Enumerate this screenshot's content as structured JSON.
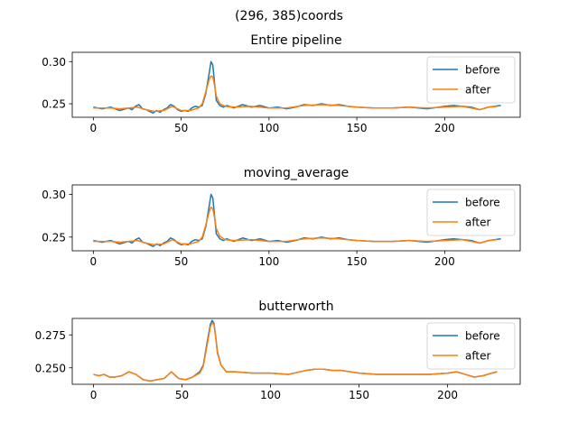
{
  "figure": {
    "suptitle": "(296, 385)coords"
  },
  "colors": {
    "before": "#1f77b4",
    "after": "#ff7f0e"
  },
  "chart_data": [
    {
      "type": "line",
      "title": "Entire pipeline",
      "xlim": [
        -12,
        243
      ],
      "ylim": [
        0.234,
        0.311
      ],
      "xticks": [
        0,
        50,
        100,
        150,
        200
      ],
      "yticks": [
        0.25,
        0.3
      ],
      "ytick_labels": [
        "0.25",
        "0.30"
      ],
      "legend": "upper right",
      "series": [
        {
          "name": "before",
          "color": "#1f77b4",
          "x": [
            0,
            5,
            10,
            15,
            20,
            22,
            24,
            26,
            28,
            30,
            32,
            34,
            36,
            38,
            40,
            42,
            44,
            46,
            48,
            50,
            52,
            54,
            56,
            58,
            60,
            62,
            64,
            66,
            67,
            68,
            69,
            70,
            72,
            74,
            76,
            80,
            85,
            90,
            95,
            100,
            105,
            110,
            115,
            120,
            125,
            130,
            135,
            140,
            145,
            150,
            160,
            170,
            180,
            190,
            200,
            205,
            210,
            215,
            220,
            225,
            232
          ],
          "y": [
            0.246,
            0.244,
            0.246,
            0.242,
            0.245,
            0.243,
            0.247,
            0.249,
            0.244,
            0.243,
            0.241,
            0.239,
            0.242,
            0.24,
            0.243,
            0.245,
            0.249,
            0.247,
            0.243,
            0.241,
            0.242,
            0.241,
            0.245,
            0.247,
            0.246,
            0.248,
            0.262,
            0.287,
            0.3,
            0.296,
            0.275,
            0.254,
            0.248,
            0.246,
            0.248,
            0.245,
            0.249,
            0.246,
            0.248,
            0.245,
            0.246,
            0.244,
            0.246,
            0.249,
            0.248,
            0.25,
            0.248,
            0.249,
            0.247,
            0.246,
            0.245,
            0.245,
            0.246,
            0.244,
            0.247,
            0.248,
            0.247,
            0.246,
            0.243,
            0.246,
            0.248
          ]
        },
        {
          "name": "after",
          "color": "#ff7f0e",
          "x": [
            0,
            5,
            10,
            15,
            20,
            25,
            30,
            35,
            40,
            45,
            50,
            55,
            60,
            62,
            64,
            66,
            67,
            68,
            69,
            70,
            72,
            75,
            80,
            90,
            100,
            110,
            120,
            130,
            140,
            150,
            160,
            170,
            180,
            190,
            200,
            210,
            215,
            220,
            225,
            230
          ],
          "y": [
            0.245,
            0.245,
            0.245,
            0.244,
            0.245,
            0.246,
            0.243,
            0.241,
            0.242,
            0.247,
            0.242,
            0.242,
            0.245,
            0.25,
            0.264,
            0.279,
            0.283,
            0.282,
            0.272,
            0.259,
            0.25,
            0.247,
            0.246,
            0.247,
            0.245,
            0.245,
            0.248,
            0.249,
            0.248,
            0.246,
            0.245,
            0.245,
            0.246,
            0.245,
            0.246,
            0.247,
            0.245,
            0.243,
            0.246,
            0.247
          ]
        }
      ]
    },
    {
      "type": "line",
      "title": "moving_average",
      "xlim": [
        -12,
        243
      ],
      "ylim": [
        0.234,
        0.311
      ],
      "xticks": [
        0,
        50,
        100,
        150,
        200
      ],
      "yticks": [
        0.25,
        0.3
      ],
      "ytick_labels": [
        "0.25",
        "0.30"
      ],
      "legend": "upper right",
      "series": [
        {
          "name": "before",
          "color": "#1f77b4",
          "x": [
            0,
            5,
            10,
            15,
            20,
            22,
            24,
            26,
            28,
            30,
            32,
            34,
            36,
            38,
            40,
            42,
            44,
            46,
            48,
            50,
            52,
            54,
            56,
            58,
            60,
            62,
            64,
            66,
            67,
            68,
            69,
            70,
            72,
            74,
            76,
            80,
            85,
            90,
            95,
            100,
            105,
            110,
            115,
            120,
            125,
            130,
            135,
            140,
            145,
            150,
            160,
            170,
            180,
            190,
            200,
            205,
            210,
            215,
            220,
            225,
            232
          ],
          "y": [
            0.246,
            0.244,
            0.246,
            0.242,
            0.245,
            0.243,
            0.247,
            0.249,
            0.244,
            0.243,
            0.241,
            0.239,
            0.242,
            0.24,
            0.243,
            0.245,
            0.249,
            0.247,
            0.243,
            0.241,
            0.242,
            0.241,
            0.245,
            0.247,
            0.246,
            0.248,
            0.262,
            0.287,
            0.3,
            0.296,
            0.275,
            0.254,
            0.248,
            0.246,
            0.248,
            0.245,
            0.249,
            0.246,
            0.248,
            0.245,
            0.246,
            0.244,
            0.246,
            0.249,
            0.248,
            0.25,
            0.248,
            0.249,
            0.247,
            0.246,
            0.245,
            0.245,
            0.246,
            0.244,
            0.247,
            0.248,
            0.247,
            0.246,
            0.243,
            0.246,
            0.248
          ]
        },
        {
          "name": "after",
          "color": "#ff7f0e",
          "x": [
            0,
            5,
            10,
            15,
            20,
            25,
            30,
            35,
            40,
            45,
            50,
            55,
            60,
            62,
            64,
            66,
            67,
            68,
            69,
            70,
            72,
            75,
            80,
            90,
            100,
            110,
            120,
            130,
            140,
            150,
            160,
            170,
            180,
            190,
            200,
            210,
            215,
            220,
            225,
            230
          ],
          "y": [
            0.245,
            0.245,
            0.245,
            0.244,
            0.245,
            0.246,
            0.243,
            0.241,
            0.242,
            0.247,
            0.242,
            0.242,
            0.245,
            0.25,
            0.264,
            0.28,
            0.285,
            0.283,
            0.273,
            0.26,
            0.251,
            0.247,
            0.246,
            0.247,
            0.245,
            0.245,
            0.248,
            0.249,
            0.248,
            0.246,
            0.245,
            0.245,
            0.246,
            0.245,
            0.246,
            0.247,
            0.245,
            0.243,
            0.246,
            0.247
          ]
        }
      ]
    },
    {
      "type": "line",
      "title": "butterworth",
      "xlim": [
        -12,
        241
      ],
      "ylim": [
        0.2375,
        0.2875
      ],
      "xticks": [
        0,
        50,
        100,
        150,
        200
      ],
      "yticks": [
        0.25,
        0.275
      ],
      "ytick_labels": [
        "0.250",
        "0.275"
      ],
      "legend": "upper right",
      "series": [
        {
          "name": "before",
          "color": "#1f77b4",
          "x": [
            0,
            3,
            6,
            9,
            12,
            16,
            20,
            24,
            28,
            32,
            36,
            40,
            44,
            48,
            52,
            56,
            60,
            62,
            64,
            66,
            67,
            68,
            69,
            70,
            72,
            75,
            80,
            90,
            100,
            110,
            120,
            125,
            130,
            135,
            140,
            150,
            160,
            170,
            180,
            190,
            200,
            205,
            210,
            215,
            220,
            225,
            228
          ],
          "y": [
            0.245,
            0.244,
            0.245,
            0.243,
            0.243,
            0.244,
            0.247,
            0.245,
            0.241,
            0.24,
            0.241,
            0.242,
            0.247,
            0.242,
            0.241,
            0.243,
            0.247,
            0.252,
            0.268,
            0.283,
            0.286,
            0.284,
            0.274,
            0.262,
            0.252,
            0.247,
            0.247,
            0.246,
            0.246,
            0.245,
            0.248,
            0.249,
            0.249,
            0.248,
            0.248,
            0.246,
            0.245,
            0.245,
            0.245,
            0.245,
            0.246,
            0.247,
            0.245,
            0.243,
            0.244,
            0.246,
            0.247
          ]
        },
        {
          "name": "after",
          "color": "#ff7f0e",
          "x": [
            0,
            3,
            6,
            9,
            12,
            16,
            20,
            24,
            28,
            32,
            36,
            40,
            44,
            48,
            52,
            56,
            60,
            62,
            64,
            66,
            67,
            68,
            69,
            70,
            72,
            75,
            80,
            90,
            100,
            110,
            120,
            125,
            130,
            135,
            140,
            150,
            160,
            170,
            180,
            190,
            200,
            205,
            210,
            215,
            220,
            225,
            228
          ],
          "y": [
            0.245,
            0.244,
            0.245,
            0.243,
            0.243,
            0.244,
            0.247,
            0.245,
            0.241,
            0.24,
            0.241,
            0.242,
            0.247,
            0.242,
            0.241,
            0.243,
            0.246,
            0.251,
            0.266,
            0.281,
            0.284,
            0.283,
            0.273,
            0.261,
            0.252,
            0.247,
            0.247,
            0.246,
            0.246,
            0.245,
            0.248,
            0.249,
            0.249,
            0.248,
            0.248,
            0.246,
            0.245,
            0.245,
            0.245,
            0.245,
            0.246,
            0.247,
            0.245,
            0.243,
            0.244,
            0.246,
            0.247
          ]
        }
      ]
    }
  ]
}
